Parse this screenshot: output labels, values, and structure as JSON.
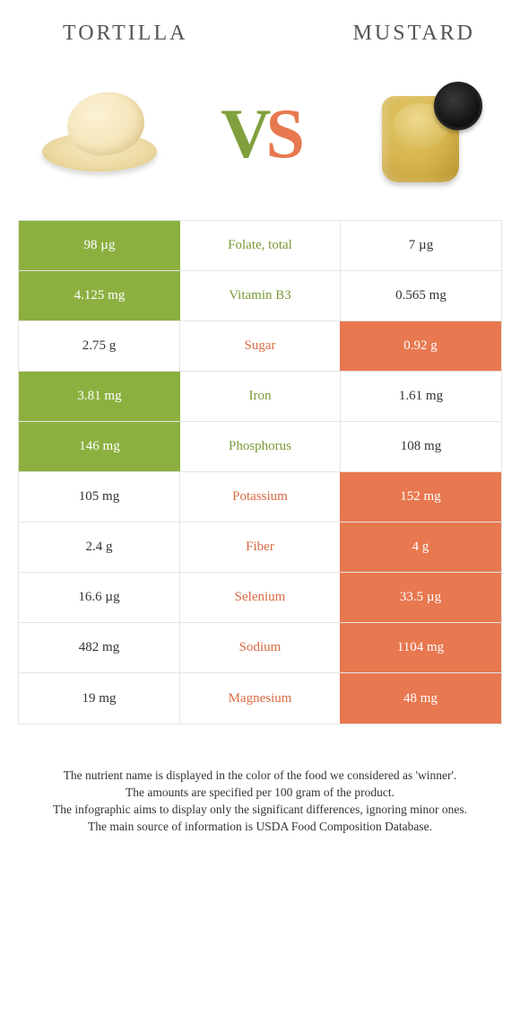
{
  "header": {
    "left": "TORTILLA",
    "right": "MUSTARD"
  },
  "vs": {
    "v": "V",
    "s": "S"
  },
  "table": [
    {
      "left": "98 µg",
      "label": "Folate, total",
      "right": "7 µg",
      "winner": "left"
    },
    {
      "left": "4.125 mg",
      "label": "Vitamin B3",
      "right": "0.565 mg",
      "winner": "left"
    },
    {
      "left": "2.75 g",
      "label": "Sugar",
      "right": "0.92 g",
      "winner": "right"
    },
    {
      "left": "3.81 mg",
      "label": "Iron",
      "right": "1.61 mg",
      "winner": "left"
    },
    {
      "left": "146 mg",
      "label": "Phosphorus",
      "right": "108 mg",
      "winner": "left"
    },
    {
      "left": "105 mg",
      "label": "Potassium",
      "right": "152 mg",
      "winner": "right"
    },
    {
      "left": "2.4 g",
      "label": "Fiber",
      "right": "4 g",
      "winner": "right"
    },
    {
      "left": "16.6 µg",
      "label": "Selenium",
      "right": "33.5 µg",
      "winner": "right"
    },
    {
      "left": "482 mg",
      "label": "Sodium",
      "right": "1104 mg",
      "winner": "right"
    },
    {
      "left": "19 mg",
      "label": "Magnesium",
      "right": "48 mg",
      "winner": "right"
    }
  ],
  "colors": {
    "green": "#8cb040",
    "orange": "#e87850",
    "midGreen": "#7a9a37",
    "midOrange": "#d96a44"
  },
  "footer": {
    "l1": "The nutrient name is displayed in the color of the food we considered as 'winner'.",
    "l2": "The amounts are specified per 100 gram of the product.",
    "l3": "The infographic aims to display only the significant differences, ignoring minor ones.",
    "l4": "The main source of information is USDA Food Composition Database."
  }
}
